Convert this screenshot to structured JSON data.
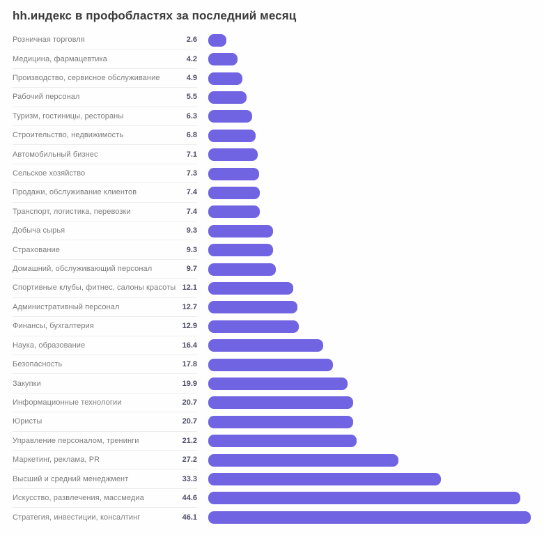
{
  "title": "hh.индекс в профобластях за последний месяц",
  "chart_data": {
    "type": "bar",
    "orientation": "horizontal",
    "title": "hh.индекс в профобластях за последний месяц",
    "categories": [
      "Розничная торговля",
      "Медицина, фармацевтика",
      "Производство, сервисное обслуживание",
      "Рабочий персонал",
      "Туризм, гостиницы, рестораны",
      "Строительство, недвижимость",
      "Автомобильный бизнес",
      "Сельское хозяйство",
      "Продажи, обслуживание клиентов",
      "Транспорт, логистика, перевозки",
      "Добыча сырья",
      "Страхование",
      "Домашний, обслуживающий персонал",
      "Спортивные клубы, фитнес, салоны красоты",
      "Административный персонал",
      "Финансы, бухгалтерия",
      "Наука, образование",
      "Безопасность",
      "Закупки",
      "Информационные технологии",
      "Юристы",
      "Управление персоналом, тренинги",
      "Маркетинг, реклама, PR",
      "Высший и средний менеджмент",
      "Искусство, развлечения, массмедиа",
      "Стратегия, инвестиции, консалтинг"
    ],
    "values": [
      2.6,
      4.2,
      4.9,
      5.5,
      6.3,
      6.8,
      7.1,
      7.3,
      7.4,
      7.4,
      9.3,
      9.3,
      9.7,
      12.1,
      12.7,
      12.9,
      16.4,
      17.8,
      19.9,
      20.7,
      20.7,
      21.2,
      27.2,
      33.3,
      44.6,
      46.1
    ],
    "xlim": [
      0,
      46.1
    ],
    "grid": false,
    "legend": "none",
    "value_labels_shown": true,
    "colors": {
      "bar": "#7164e2",
      "category_label": "#7c7c7c",
      "value_label": "#4d4e68",
      "title": "#3b3b3b",
      "divider": "#ededed",
      "background": "#fefefe"
    }
  }
}
